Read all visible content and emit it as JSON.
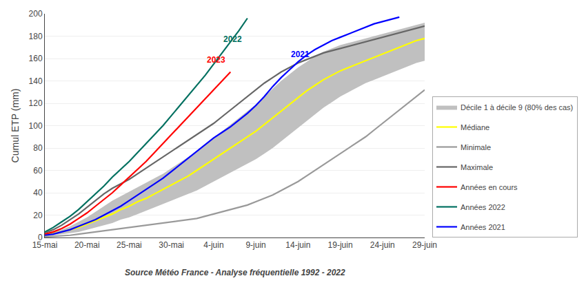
{
  "chart_data": {
    "type": "line",
    "y_label": "Cumul ETP (mm)",
    "caption": "Source Météo France - Analyse fréquentielle 1992 - 2022",
    "categories": [
      "15-mai",
      null,
      null,
      null,
      null,
      "20-mai",
      null,
      null,
      null,
      null,
      "25-mai",
      null,
      null,
      null,
      null,
      "30-mai",
      null,
      null,
      null,
      null,
      "4-juin",
      null,
      null,
      null,
      null,
      "9-juin",
      null,
      null,
      null,
      null,
      "14-juin",
      null,
      null,
      null,
      null,
      "19-juin",
      null,
      null,
      null,
      null,
      "24-juin",
      null,
      null,
      null,
      null,
      "29-juin"
    ],
    "ylim": [
      0,
      200
    ],
    "yticks": [
      0,
      20,
      40,
      60,
      80,
      100,
      120,
      140,
      160,
      180,
      200
    ],
    "grid": "y",
    "legend": "right",
    "series": [
      {
        "name": "Décile 1 à décile 9 (80% des cas)",
        "type": "band",
        "color": "#c0c0c0",
        "lower": [
          1,
          2,
          3,
          4,
          5,
          7,
          9,
          11,
          13,
          16,
          18,
          21,
          24,
          27,
          30,
          33,
          36,
          39,
          42,
          46,
          50,
          54,
          58,
          62,
          66,
          70,
          75,
          80,
          86,
          92,
          98,
          104,
          110,
          116,
          121,
          126,
          130,
          134,
          138,
          141,
          144,
          147,
          150,
          153,
          156,
          158
        ],
        "upper": [
          3,
          5,
          7,
          10,
          14,
          18,
          23,
          28,
          33,
          37,
          41,
          45,
          49,
          53,
          57,
          62,
          67,
          72,
          77,
          83,
          89,
          95,
          101,
          107,
          113,
          119,
          126,
          133,
          140,
          146,
          152,
          157,
          162,
          166,
          169,
          172,
          174,
          176,
          178,
          180,
          182,
          184,
          186,
          188,
          190,
          192
        ]
      },
      {
        "name": "Médiane",
        "color": "#ffff00",
        "values": [
          2,
          3.5,
          5,
          7,
          9,
          12,
          15,
          18,
          21,
          25,
          28,
          32,
          35,
          39,
          43,
          47,
          51,
          55,
          60,
          65,
          70,
          75,
          80,
          85,
          90,
          95,
          101,
          107,
          113,
          119,
          125,
          131,
          136,
          141,
          145,
          149,
          152,
          155,
          158,
          161,
          164,
          167,
          170,
          173,
          176,
          178
        ]
      },
      {
        "name": "Minimale",
        "color": "#999999",
        "values": [
          0.5,
          1,
          1.5,
          2,
          3,
          4,
          5,
          6,
          7,
          8,
          9,
          10,
          11,
          12,
          13,
          14,
          15,
          16,
          17,
          19,
          21,
          23,
          25,
          27,
          29,
          32,
          35,
          38,
          42,
          46,
          50,
          55,
          60,
          65,
          70,
          75,
          80,
          85,
          90,
          96,
          102,
          108,
          114,
          120,
          126,
          132
        ]
      },
      {
        "name": "Maximale",
        "color": "#666666",
        "values": [
          4,
          7,
          11,
          16,
          21,
          27,
          33,
          39,
          44,
          48,
          52,
          57,
          62,
          67,
          72,
          77,
          82,
          87,
          92,
          97,
          102,
          108,
          114,
          120,
          126,
          132,
          138,
          143,
          148,
          152,
          156,
          159,
          162,
          165,
          167,
          169,
          171,
          173,
          175,
          177,
          179,
          181,
          183,
          185,
          187,
          189
        ]
      },
      {
        "name": "Années en cours",
        "color": "#ff0000",
        "values": [
          3,
          5,
          8,
          12,
          17,
          22,
          28,
          34,
          40,
          47,
          54,
          61,
          68,
          76,
          84,
          92,
          100,
          108,
          116,
          124,
          132,
          140,
          148,
          null,
          null,
          null,
          null,
          null,
          null,
          null,
          null,
          null,
          null,
          null,
          null,
          null,
          null,
          null,
          null,
          null,
          null,
          null,
          null,
          null,
          null,
          null
        ]
      },
      {
        "name": "Années 2022",
        "color": "#007060",
        "values": [
          5,
          9,
          14,
          19,
          25,
          32,
          39,
          46,
          54,
          61,
          68,
          76,
          84,
          92,
          100,
          109,
          118,
          127,
          136,
          145,
          155,
          165,
          175,
          185,
          196,
          null,
          null,
          null,
          null,
          null,
          null,
          null,
          null,
          null,
          null,
          null,
          null,
          null,
          null,
          null,
          null,
          null,
          null,
          null,
          null,
          null
        ]
      },
      {
        "name": "Années 2021",
        "color": "#0000ff",
        "values": [
          2,
          3,
          5,
          7,
          10,
          13,
          16,
          20,
          24,
          28,
          33,
          38,
          43,
          48,
          53,
          59,
          65,
          71,
          77,
          83,
          89,
          94,
          99,
          105,
          111,
          118,
          126,
          135,
          143,
          150,
          157,
          163,
          168,
          172,
          176,
          179,
          182,
          185,
          188,
          191,
          193,
          195,
          197,
          null,
          null,
          null
        ]
      }
    ],
    "annotations": [
      {
        "text": "2022",
        "x": 21,
        "y": 172,
        "color": "#007060"
      },
      {
        "text": "2023",
        "x": 19,
        "y": 153,
        "color": "#ff0000"
      },
      {
        "text": "2021",
        "x": 29,
        "y": 158,
        "color": "#0000ff"
      }
    ]
  }
}
